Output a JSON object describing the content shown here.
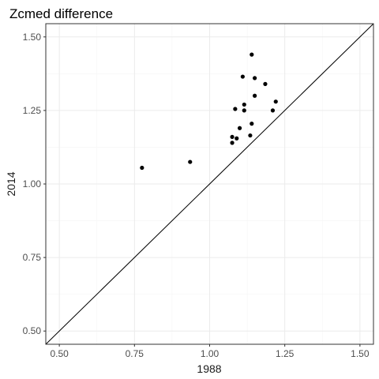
{
  "chart_data": {
    "type": "scatter",
    "title": "Zcmed difference",
    "xlabel": "1988",
    "ylabel": "2014",
    "xlim": [
      0.455,
      1.545
    ],
    "ylim": [
      0.455,
      1.545
    ],
    "xticks": [
      0.5,
      0.75,
      1.0,
      1.25,
      1.5
    ],
    "yticks": [
      0.5,
      0.75,
      1.0,
      1.25,
      1.5
    ],
    "xtick_labels": [
      "0.50",
      "0.75",
      "1.00",
      "1.25",
      "1.50"
    ],
    "ytick_labels": [
      "0.50",
      "0.75",
      "1.00",
      "1.25",
      "1.50"
    ],
    "grid": true,
    "reference_line": "y = x",
    "points": [
      {
        "x": 0.775,
        "y": 1.055
      },
      {
        "x": 0.935,
        "y": 1.075
      },
      {
        "x": 1.075,
        "y": 1.14
      },
      {
        "x": 1.075,
        "y": 1.16
      },
      {
        "x": 1.09,
        "y": 1.155
      },
      {
        "x": 1.085,
        "y": 1.255
      },
      {
        "x": 1.1,
        "y": 1.19
      },
      {
        "x": 1.11,
        "y": 1.365
      },
      {
        "x": 1.115,
        "y": 1.27
      },
      {
        "x": 1.115,
        "y": 1.25
      },
      {
        "x": 1.135,
        "y": 1.165
      },
      {
        "x": 1.14,
        "y": 1.44
      },
      {
        "x": 1.14,
        "y": 1.205
      },
      {
        "x": 1.15,
        "y": 1.3
      },
      {
        "x": 1.15,
        "y": 1.36
      },
      {
        "x": 1.185,
        "y": 1.34
      },
      {
        "x": 1.21,
        "y": 1.25
      },
      {
        "x": 1.22,
        "y": 1.28
      }
    ]
  }
}
